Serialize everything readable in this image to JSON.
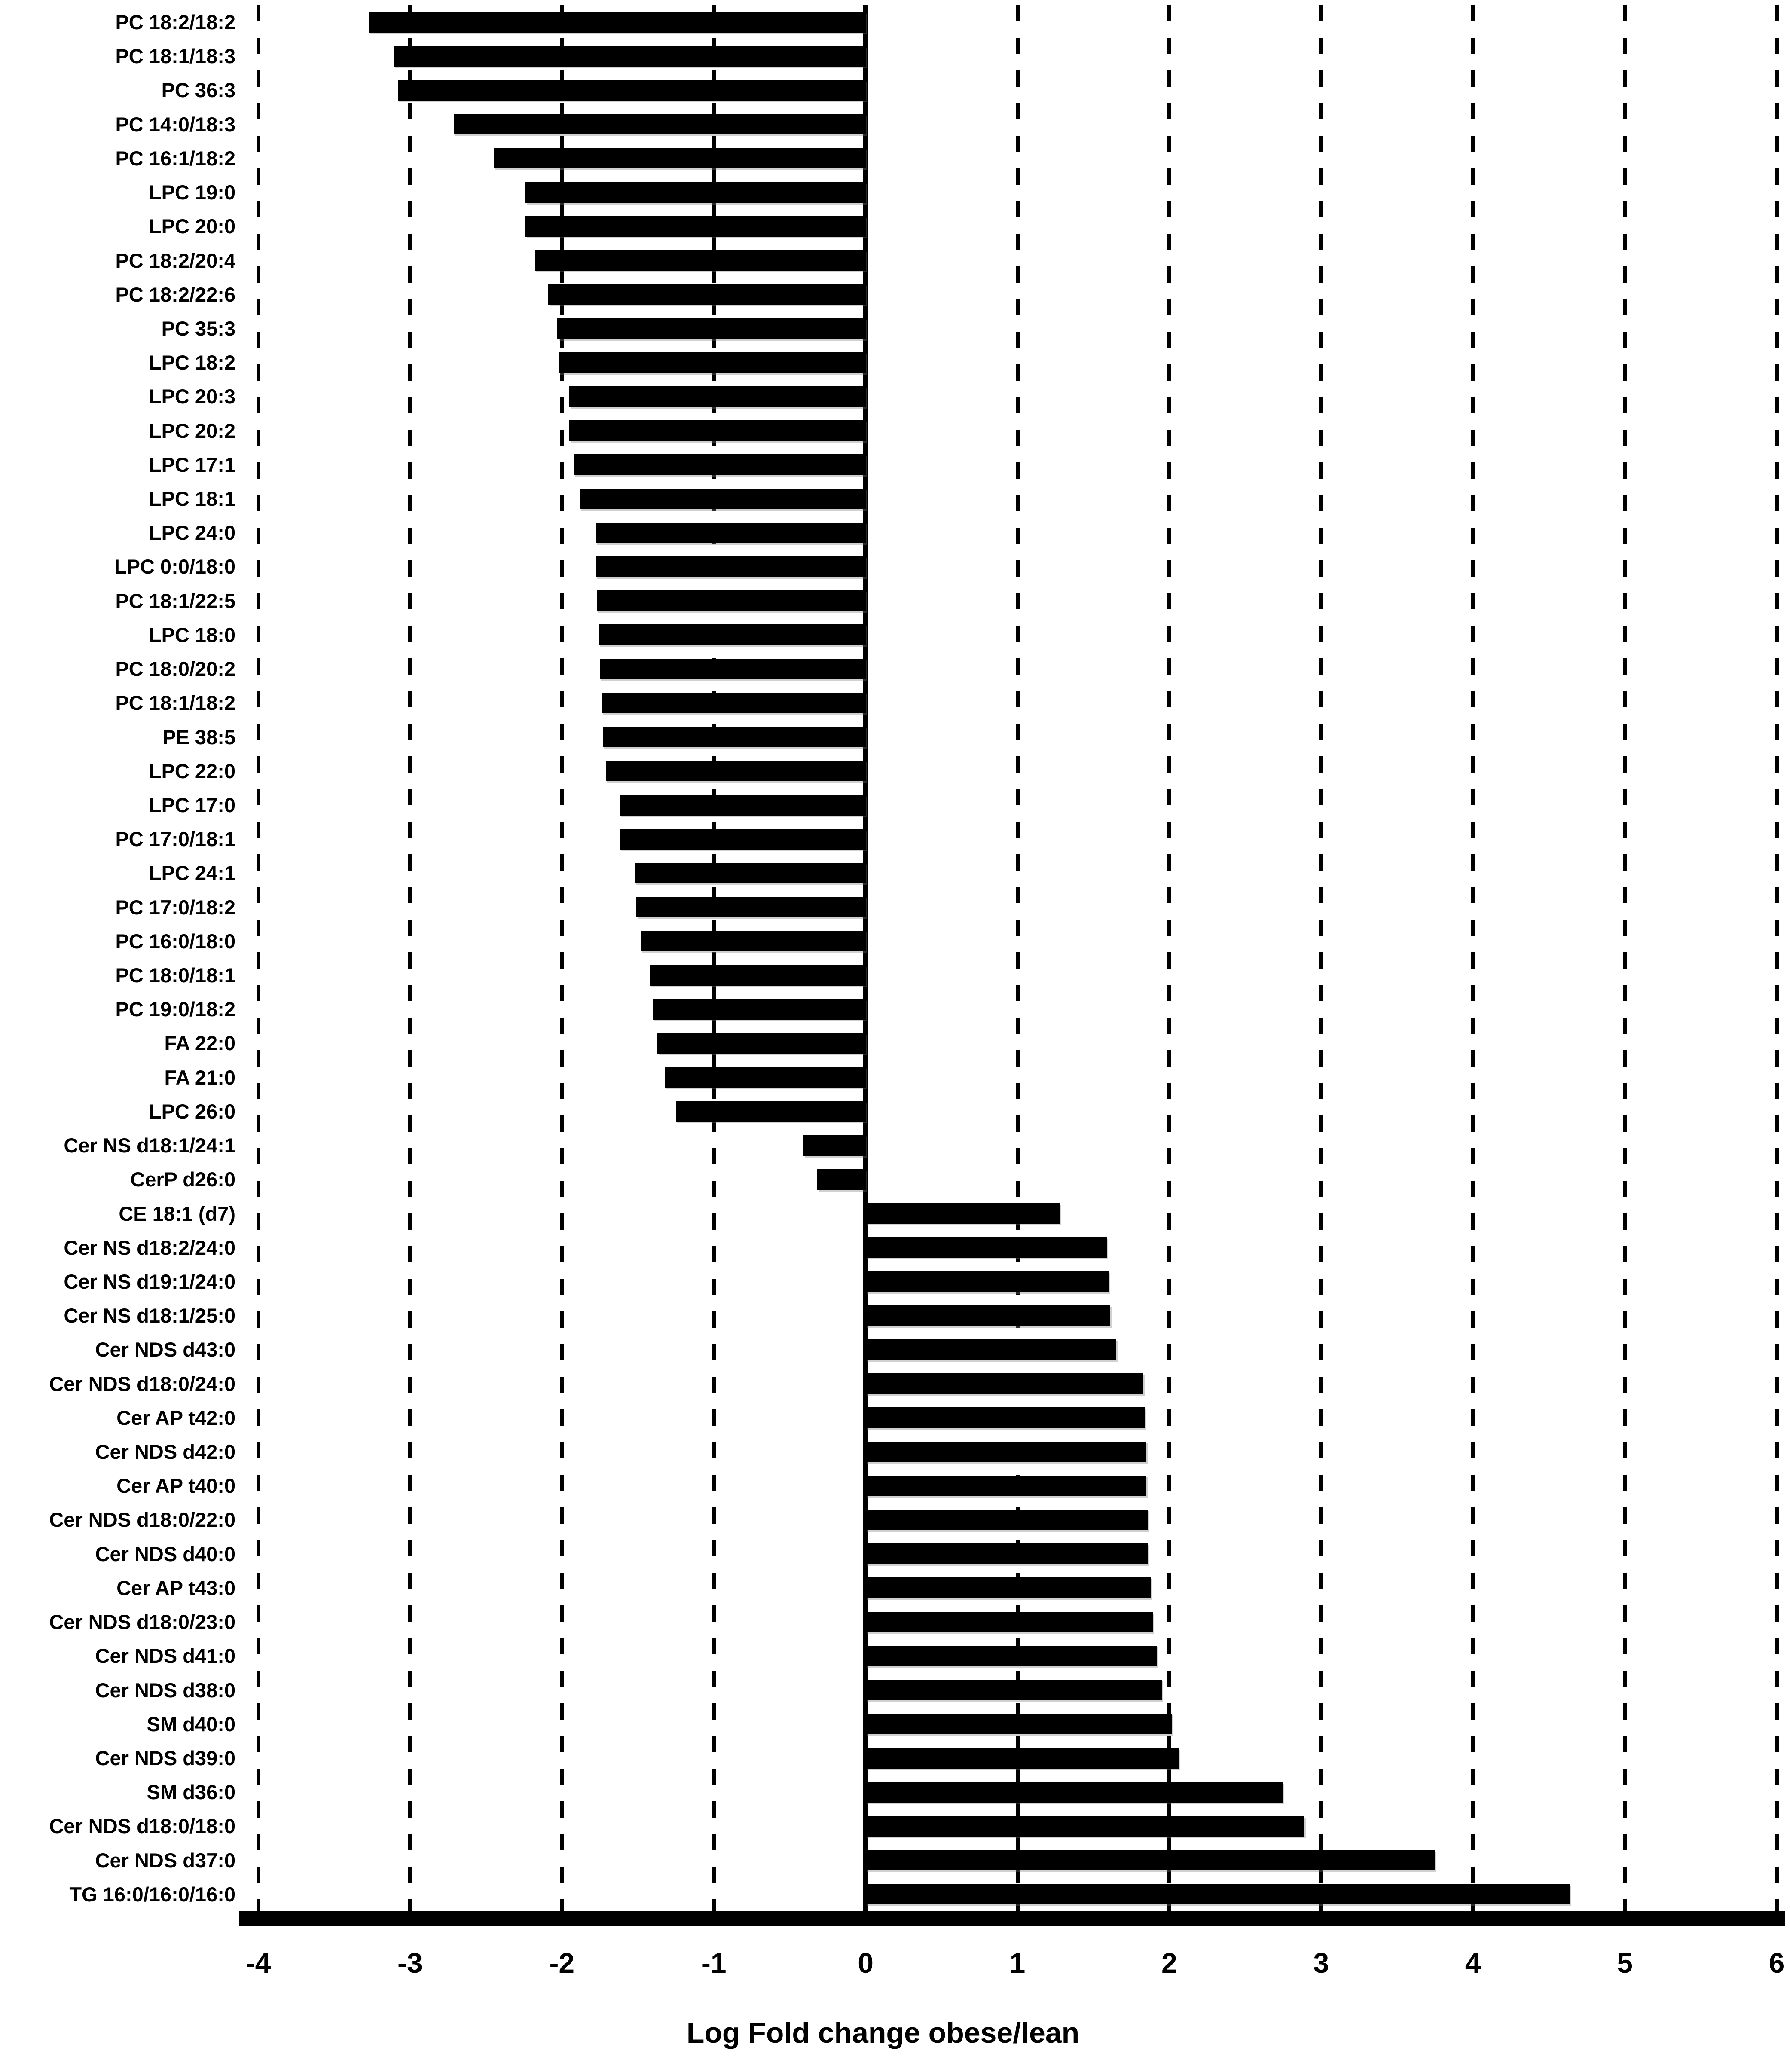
{
  "chart_data": {
    "type": "bar",
    "orientation": "horizontal",
    "title": "",
    "xlabel": "Log Fold change obese/lean",
    "ylabel": "",
    "xlim": [
      -4,
      6
    ],
    "x_ticks": [
      -4,
      -3,
      -2,
      -1,
      0,
      1,
      2,
      3,
      4,
      5,
      6
    ],
    "grid": "vertical-dashed",
    "zero_line": "solid",
    "legend": "none",
    "bar_color": "#000000",
    "background_color": "#ffffff",
    "categories": [
      "PC 18:2/18:2",
      "PC 18:1/18:3",
      "PC 36:3",
      "PC 14:0/18:3",
      "PC 16:1/18:2",
      "LPC 19:0",
      "LPC 20:0",
      "PC 18:2/20:4",
      "PC 18:2/22:6",
      "PC 35:3",
      "LPC 18:2",
      "LPC 20:3",
      "LPC 20:2",
      "LPC 17:1",
      "LPC 18:1",
      "LPC 24:0",
      "LPC 0:0/18:0",
      "PC 18:1/22:5",
      "LPC 18:0",
      "PC 18:0/20:2",
      "PC 18:1/18:2",
      "PE 38:5",
      "LPC 22:0",
      "LPC 17:0",
      "PC 17:0/18:1",
      "LPC 24:1",
      "PC 17:0/18:2",
      "PC 16:0/18:0",
      "PC 18:0/18:1",
      "PC 19:0/18:2",
      "FA 22:0",
      "FA 21:0",
      "LPC 26:0",
      "Cer NS d18:1/24:1",
      "CerP d26:0",
      "CE 18:1 (d7)",
      "Cer NS d18:2/24:0",
      "Cer NS d19:1/24:0",
      "Cer NS d18:1/25:0",
      "Cer NDS d43:0",
      "Cer NDS d18:0/24:0",
      "Cer AP t42:0",
      "Cer NDS d42:0",
      "Cer AP t40:0",
      "Cer NDS d18:0/22:0",
      "Cer NDS d40:0",
      "Cer AP t43:0",
      "Cer NDS d18:0/23:0",
      "Cer NDS d41:0",
      "Cer NDS d38:0",
      "SM d40:0",
      "Cer NDS d39:0",
      "SM d36:0",
      "Cer NDS d18:0/18:0",
      "Cer NDS d37:0",
      "TG 16:0/16:0/16:0"
    ],
    "values": [
      -3.27,
      -3.11,
      -3.08,
      -2.71,
      -2.45,
      -2.24,
      -2.24,
      -2.18,
      -2.09,
      -2.03,
      -2.02,
      -1.95,
      -1.95,
      -1.92,
      -1.88,
      -1.78,
      -1.78,
      -1.77,
      -1.76,
      -1.75,
      -1.74,
      -1.73,
      -1.71,
      -1.62,
      -1.62,
      -1.52,
      -1.51,
      -1.48,
      -1.42,
      -1.4,
      -1.37,
      -1.32,
      -1.25,
      -0.41,
      -0.32,
      1.28,
      1.59,
      1.6,
      1.61,
      1.65,
      1.83,
      1.84,
      1.85,
      1.85,
      1.86,
      1.86,
      1.88,
      1.89,
      1.92,
      1.95,
      2.02,
      2.06,
      2.75,
      2.89,
      3.75,
      4.64
    ]
  }
}
